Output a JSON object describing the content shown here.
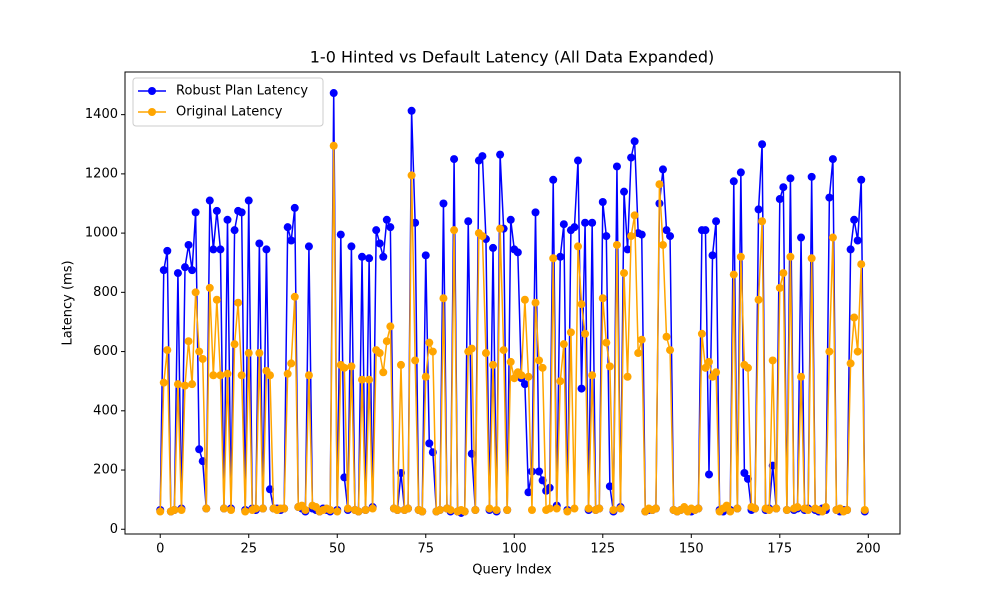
{
  "chart_data": {
    "type": "line",
    "title": "1-0 Hinted vs Default Latency (All Data Expanded)",
    "x_label": "Query Index",
    "y_label": "Latency (ms)",
    "legend": "upper left",
    "x": [
      0,
      1,
      2,
      3,
      4,
      5,
      6,
      7,
      8,
      9,
      10,
      11,
      12,
      13,
      14,
      15,
      16,
      17,
      18,
      19,
      20,
      21,
      22,
      23,
      24,
      25,
      26,
      27,
      28,
      29,
      30,
      31,
      32,
      33,
      34,
      35,
      36,
      37,
      38,
      39,
      40,
      41,
      42,
      43,
      44,
      45,
      46,
      47,
      48,
      49,
      50,
      51,
      52,
      53,
      54,
      55,
      56,
      57,
      58,
      59,
      60,
      61,
      62,
      63,
      64,
      65,
      66,
      67,
      68,
      69,
      70,
      71,
      72,
      73,
      74,
      75,
      76,
      77,
      78,
      79,
      80,
      81,
      82,
      83,
      84,
      85,
      86,
      87,
      88,
      89,
      90,
      91,
      92,
      93,
      94,
      95,
      96,
      97,
      98,
      99,
      100,
      101,
      102,
      103,
      104,
      105,
      106,
      107,
      108,
      109,
      110,
      111,
      112,
      113,
      114,
      115,
      116,
      117,
      118,
      119,
      120,
      121,
      122,
      123,
      124,
      125,
      126,
      127,
      128,
      129,
      130,
      131,
      132,
      133,
      134,
      135,
      136,
      137,
      138,
      139,
      140,
      141,
      142,
      143,
      144,
      145,
      146,
      147,
      148,
      149,
      150,
      151,
      152,
      153,
      154,
      155,
      156,
      157,
      158,
      159,
      160,
      161,
      162,
      163,
      164,
      165,
      166,
      167,
      168,
      169,
      170,
      171,
      172,
      173,
      174,
      175,
      176,
      177,
      178,
      179,
      180,
      181,
      182,
      183,
      184,
      185,
      186,
      187,
      188,
      189,
      190,
      191,
      192,
      193,
      194,
      195,
      196,
      197,
      198,
      199
    ],
    "series": [
      {
        "name": "Robust Plan Latency",
        "color": "#0000ff",
        "values": [
          65,
          875,
          940,
          60,
          65,
          865,
          70,
          885,
          960,
          875,
          1070,
          270,
          230,
          70,
          1110,
          945,
          1075,
          945,
          70,
          1045,
          70,
          1010,
          1075,
          1070,
          65,
          1110,
          70,
          65,
          965,
          70,
          945,
          135,
          70,
          70,
          65,
          70,
          1020,
          975,
          1085,
          75,
          70,
          60,
          955,
          70,
          65,
          60,
          70,
          65,
          60,
          1473,
          65,
          995,
          175,
          65,
          955,
          65,
          60,
          920,
          65,
          915,
          75,
          1010,
          965,
          920,
          1045,
          1020,
          70,
          65,
          190,
          65,
          70,
          1413,
          1035,
          65,
          60,
          925,
          290,
          260,
          60,
          65,
          1100,
          70,
          60,
          1250,
          60,
          55,
          60,
          1040,
          255,
          65,
          1245,
          1260,
          980,
          65,
          950,
          60,
          1265,
          1015,
          65,
          1045,
          945,
          935,
          510,
          490,
          125,
          195,
          1070,
          195,
          165,
          130,
          140,
          1180,
          80,
          920,
          1030,
          65,
          1010,
          1020,
          1245,
          475,
          1035,
          65,
          1035,
          65,
          70,
          1105,
          990,
          145,
          60,
          1225,
          75,
          1140,
          945,
          1255,
          1310,
          1000,
          995,
          60,
          65,
          65,
          70,
          1100,
          1215,
          1010,
          990,
          65,
          60,
          65,
          70,
          65,
          60,
          65,
          70,
          1010,
          1010,
          185,
          925,
          1040,
          65,
          60,
          70,
          65,
          1175,
          70,
          1205,
          190,
          170,
          65,
          70,
          1080,
          1300,
          65,
          70,
          215,
          70,
          1115,
          1155,
          65,
          1185,
          65,
          70,
          985,
          65,
          70,
          1190,
          65,
          60,
          70,
          65,
          1120,
          1250,
          65,
          60,
          65,
          65,
          945,
          1045,
          975,
          1180,
          60
        ]
      },
      {
        "name": "Original Latency",
        "color": "#ffa500",
        "values": [
          60,
          495,
          605,
          60,
          65,
          490,
          65,
          485,
          635,
          490,
          800,
          600,
          575,
          70,
          815,
          520,
          775,
          520,
          70,
          525,
          65,
          625,
          765,
          520,
          60,
          595,
          65,
          70,
          595,
          70,
          535,
          520,
          70,
          65,
          70,
          70,
          525,
          560,
          785,
          75,
          80,
          65,
          520,
          80,
          75,
          60,
          65,
          70,
          65,
          1295,
          60,
          555,
          545,
          70,
          550,
          65,
          60,
          505,
          65,
          505,
          70,
          605,
          595,
          530,
          635,
          685,
          70,
          65,
          555,
          65,
          70,
          1195,
          570,
          65,
          60,
          515,
          630,
          600,
          60,
          65,
          780,
          70,
          65,
          1010,
          60,
          65,
          60,
          600,
          610,
          65,
          1000,
          990,
          595,
          70,
          555,
          65,
          1015,
          605,
          65,
          565,
          510,
          530,
          520,
          775,
          515,
          65,
          765,
          570,
          545,
          65,
          70,
          915,
          70,
          500,
          625,
          60,
          665,
          70,
          955,
          760,
          660,
          70,
          520,
          65,
          70,
          780,
          630,
          550,
          65,
          960,
          70,
          865,
          515,
          990,
          1060,
          595,
          640,
          60,
          70,
          65,
          70,
          1165,
          960,
          650,
          605,
          65,
          60,
          65,
          75,
          60,
          70,
          65,
          70,
          660,
          545,
          565,
          515,
          530,
          60,
          70,
          80,
          60,
          860,
          70,
          920,
          555,
          545,
          75,
          70,
          775,
          1040,
          70,
          65,
          570,
          70,
          815,
          865,
          65,
          920,
          70,
          75,
          515,
          70,
          65,
          915,
          70,
          65,
          60,
          75,
          600,
          985,
          65,
          70,
          60,
          65,
          560,
          715,
          600,
          895,
          65
        ]
      }
    ],
    "xlim": [
      -9.95,
      208.95
    ],
    "xticks": [
      0,
      25,
      50,
      75,
      100,
      125,
      150,
      175,
      200
    ],
    "ylim": [
      -16,
      1544
    ],
    "yticks": [
      0,
      200,
      400,
      600,
      800,
      1000,
      1200,
      1400
    ]
  }
}
